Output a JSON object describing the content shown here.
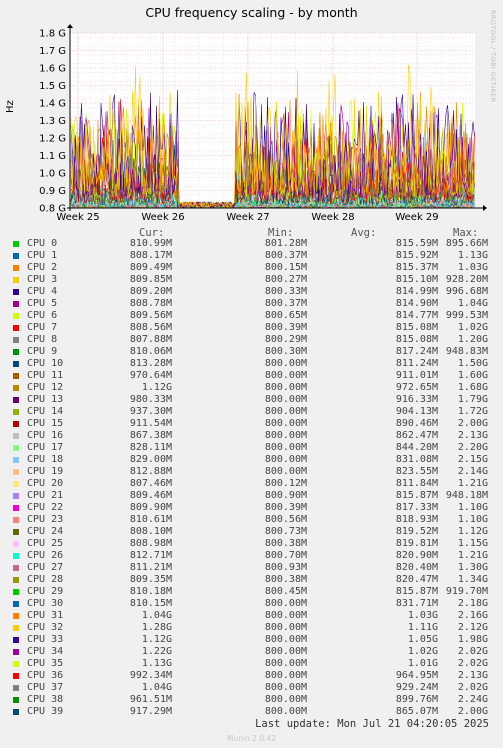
{
  "title": "CPU frequency scaling - by month",
  "side_label": "RRDTOOL / TOBI OETIKER",
  "footer": {
    "last_update": "Last update: Mon Jul 21 04:20:05 2025",
    "version": "Munin 2.0.42"
  },
  "legend_headers": {
    "cur": "Cur:",
    "min": "Min:",
    "avg": "Avg:",
    "max": "Max:"
  },
  "chart_data": {
    "type": "line",
    "title": "CPU frequency scaling - by month",
    "ylabel": "Hz",
    "ylim": [
      0.8,
      1.8
    ],
    "y_unit": "G",
    "yticks": [
      "0.8 G",
      "0.9 G",
      "1.0 G",
      "1.1 G",
      "1.2 G",
      "1.3 G",
      "1.4 G",
      "1.5 G",
      "1.6 G",
      "1.7 G",
      "1.8 G"
    ],
    "xticks": [
      "Week 25",
      "Week 26",
      "Week 27",
      "Week 28",
      "Week 29"
    ],
    "grid": true,
    "series": [
      {
        "name": "CPU 0",
        "color": "#00cc00",
        "cur": "810.99M",
        "min": "801.28M",
        "avg": "815.59M",
        "max": "895.66M"
      },
      {
        "name": "CPU 1",
        "color": "#0066b3",
        "cur": "808.17M",
        "min": "800.37M",
        "avg": "815.92M",
        "max": "1.13G"
      },
      {
        "name": "CPU 2",
        "color": "#ff8000",
        "cur": "809.49M",
        "min": "800.15M",
        "avg": "815.37M",
        "max": "1.03G"
      },
      {
        "name": "CPU 3",
        "color": "#ffcc00",
        "cur": "809.85M",
        "min": "800.27M",
        "avg": "815.10M",
        "max": "928.20M"
      },
      {
        "name": "CPU 4",
        "color": "#330099",
        "cur": "809.20M",
        "min": "800.33M",
        "avg": "814.99M",
        "max": "996.68M"
      },
      {
        "name": "CPU 5",
        "color": "#990099",
        "cur": "808.78M",
        "min": "800.37M",
        "avg": "814.90M",
        "max": "1.04G"
      },
      {
        "name": "CPU 6",
        "color": "#ccff00",
        "cur": "809.56M",
        "min": "800.65M",
        "avg": "814.77M",
        "max": "999.53M"
      },
      {
        "name": "CPU 7",
        "color": "#ff0000",
        "cur": "808.56M",
        "min": "800.39M",
        "avg": "815.08M",
        "max": "1.02G"
      },
      {
        "name": "CPU 8",
        "color": "#808080",
        "cur": "807.88M",
        "min": "800.29M",
        "avg": "815.08M",
        "max": "1.20G"
      },
      {
        "name": "CPU 9",
        "color": "#008f00",
        "cur": "810.06M",
        "min": "800.30M",
        "avg": "817.24M",
        "max": "948.83M"
      },
      {
        "name": "CPU 10",
        "color": "#00487d",
        "cur": "813.28M",
        "min": "800.00M",
        "avg": "811.24M",
        "max": "1.50G"
      },
      {
        "name": "CPU 11",
        "color": "#b35a00",
        "cur": "970.64M",
        "min": "800.00M",
        "avg": "911.01M",
        "max": "1.60G"
      },
      {
        "name": "CPU 12",
        "color": "#b38f00",
        "cur": "1.12G",
        "min": "800.00M",
        "avg": "972.65M",
        "max": "1.68G"
      },
      {
        "name": "CPU 13",
        "color": "#6b006b",
        "cur": "980.33M",
        "min": "800.00M",
        "avg": "916.33M",
        "max": "1.79G"
      },
      {
        "name": "CPU 14",
        "color": "#8fb300",
        "cur": "937.30M",
        "min": "800.00M",
        "avg": "904.13M",
        "max": "1.72G"
      },
      {
        "name": "CPU 15",
        "color": "#b30000",
        "cur": "911.54M",
        "min": "800.00M",
        "avg": "890.46M",
        "max": "2.00G"
      },
      {
        "name": "CPU 16",
        "color": "#bebebe",
        "cur": "867.38M",
        "min": "800.00M",
        "avg": "862.47M",
        "max": "2.13G"
      },
      {
        "name": "CPU 17",
        "color": "#80ff80",
        "cur": "828.11M",
        "min": "800.00M",
        "avg": "844.20M",
        "max": "2.20G"
      },
      {
        "name": "CPU 18",
        "color": "#80c9ff",
        "cur": "829.00M",
        "min": "800.00M",
        "avg": "831.08M",
        "max": "2.15G"
      },
      {
        "name": "CPU 19",
        "color": "#ffc080",
        "cur": "812.88M",
        "min": "800.00M",
        "avg": "823.55M",
        "max": "2.14G"
      },
      {
        "name": "CPU 20",
        "color": "#ffe680",
        "cur": "807.46M",
        "min": "800.12M",
        "avg": "811.84M",
        "max": "1.21G"
      },
      {
        "name": "CPU 21",
        "color": "#aa80ff",
        "cur": "809.46M",
        "min": "800.90M",
        "avg": "815.87M",
        "max": "948.18M"
      },
      {
        "name": "CPU 22",
        "color": "#ee00cc",
        "cur": "809.90M",
        "min": "800.39M",
        "avg": "817.33M",
        "max": "1.10G"
      },
      {
        "name": "CPU 23",
        "color": "#ff8080",
        "cur": "810.61M",
        "min": "800.56M",
        "avg": "818.93M",
        "max": "1.10G"
      },
      {
        "name": "CPU 24",
        "color": "#666600",
        "cur": "808.10M",
        "min": "800.73M",
        "avg": "819.52M",
        "max": "1.12G"
      },
      {
        "name": "CPU 25",
        "color": "#ffbfff",
        "cur": "808.98M",
        "min": "800.38M",
        "avg": "819.81M",
        "max": "1.15G"
      },
      {
        "name": "CPU 26",
        "color": "#00ffcc",
        "cur": "812.71M",
        "min": "800.70M",
        "avg": "820.90M",
        "max": "1.21G"
      },
      {
        "name": "CPU 27",
        "color": "#cc6699",
        "cur": "811.21M",
        "min": "800.93M",
        "avg": "820.40M",
        "max": "1.30G"
      },
      {
        "name": "CPU 28",
        "color": "#999900",
        "cur": "809.35M",
        "min": "800.38M",
        "avg": "820.47M",
        "max": "1.34G"
      },
      {
        "name": "CPU 29",
        "color": "#00cc00",
        "cur": "810.18M",
        "min": "800.45M",
        "avg": "815.87M",
        "max": "919.70M"
      },
      {
        "name": "CPU 30",
        "color": "#0066b3",
        "cur": "810.15M",
        "min": "800.00M",
        "avg": "831.71M",
        "max": "2.18G"
      },
      {
        "name": "CPU 31",
        "color": "#ff8000",
        "cur": "1.04G",
        "min": "800.00M",
        "avg": "1.03G",
        "max": "2.16G"
      },
      {
        "name": "CPU 32",
        "color": "#ffcc00",
        "cur": "1.28G",
        "min": "800.00M",
        "avg": "1.11G",
        "max": "2.12G"
      },
      {
        "name": "CPU 33",
        "color": "#330099",
        "cur": "1.12G",
        "min": "800.00M",
        "avg": "1.05G",
        "max": "1.98G"
      },
      {
        "name": "CPU 34",
        "color": "#990099",
        "cur": "1.22G",
        "min": "800.00M",
        "avg": "1.02G",
        "max": "2.02G"
      },
      {
        "name": "CPU 35",
        "color": "#ccff00",
        "cur": "1.13G",
        "min": "800.00M",
        "avg": "1.01G",
        "max": "2.02G"
      },
      {
        "name": "CPU 36",
        "color": "#ff0000",
        "cur": "992.34M",
        "min": "800.00M",
        "avg": "964.95M",
        "max": "2.13G"
      },
      {
        "name": "CPU 37",
        "color": "#808080",
        "cur": "1.04G",
        "min": "800.00M",
        "avg": "929.24M",
        "max": "2.02G"
      },
      {
        "name": "CPU 38",
        "color": "#008f00",
        "cur": "961.51M",
        "min": "800.00M",
        "avg": "899.76M",
        "max": "2.24G"
      },
      {
        "name": "CPU 39",
        "color": "#00487d",
        "cur": "917.29M",
        "min": "800.00M",
        "avg": "865.07M",
        "max": "2.00G"
      }
    ]
  }
}
